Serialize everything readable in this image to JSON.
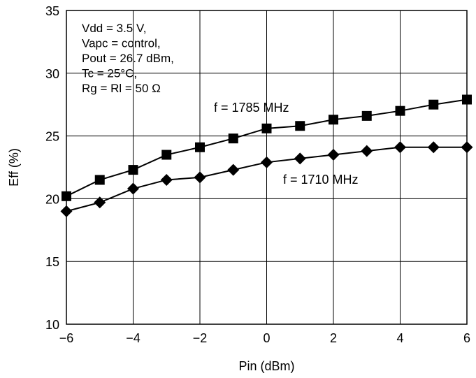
{
  "chart_data": {
    "type": "line",
    "title": "",
    "xlabel": "Pin (dBm)",
    "ylabel": "Eff (%)",
    "xlim": [
      -6,
      6
    ],
    "ylim": [
      10,
      35
    ],
    "xticks": [
      -6,
      -4,
      -2,
      0,
      2,
      4,
      6
    ],
    "xtick_labels": [
      "−6",
      "−4",
      "−2",
      "0",
      "2",
      "4",
      "6"
    ],
    "yticks": [
      10,
      15,
      20,
      25,
      30,
      35
    ],
    "ytick_labels": [
      "10",
      "15",
      "20",
      "25",
      "30",
      "35"
    ],
    "grid": true,
    "annotation_lines": [
      "Vdd = 3.5 V,",
      "Vapc = control,",
      "Pout = 26.7 dBm,",
      "Tc = 25°C,",
      "Rg = Rl = 50 Ω"
    ],
    "series": [
      {
        "name": "f = 1785 MHz",
        "marker": "square",
        "x": [
          -6,
          -5,
          -4,
          -3,
          -2,
          -1,
          0,
          1,
          2,
          3,
          4,
          5,
          6
        ],
        "y": [
          20.2,
          21.5,
          22.3,
          23.5,
          24.1,
          24.8,
          25.6,
          25.8,
          26.3,
          26.6,
          27.0,
          27.5,
          27.9
        ]
      },
      {
        "name": "f = 1710 MHz",
        "marker": "diamond",
        "x": [
          -6,
          -5,
          -4,
          -3,
          -2,
          -1,
          0,
          1,
          2,
          3,
          4,
          5,
          6
        ],
        "y": [
          19.0,
          19.7,
          20.8,
          21.5,
          21.7,
          22.3,
          22.9,
          23.2,
          23.5,
          23.8,
          24.1,
          24.1,
          24.1
        ]
      }
    ],
    "colors": {
      "line": "#000000",
      "marker": "#000000",
      "grid": "#000000",
      "background": "#ffffff"
    }
  }
}
